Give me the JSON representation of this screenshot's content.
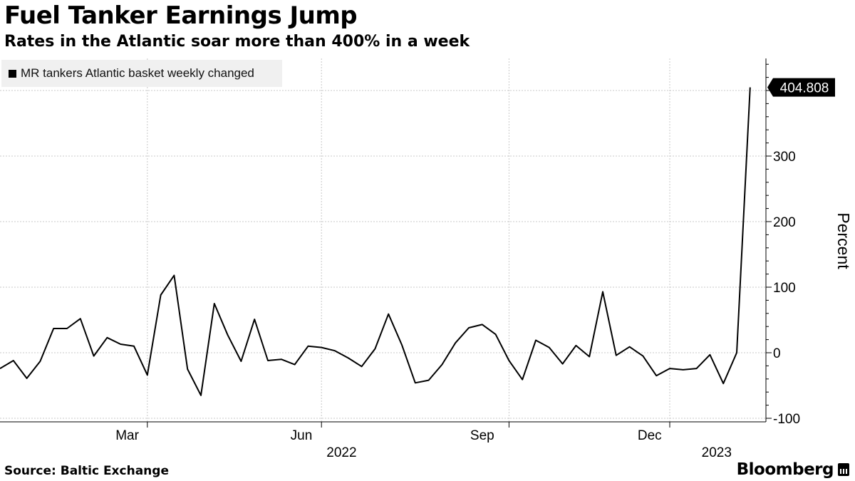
{
  "chart_data": {
    "type": "line",
    "title": "Fuel Tanker Earnings Jump",
    "subtitle": "Rates in the Atlantic soar more than 400% in a week",
    "ylabel": "Percent",
    "ylim": [
      -105,
      450
    ],
    "yticks": [
      -100,
      0,
      100,
      200,
      300
    ],
    "ytick_labels": [
      "-100",
      "0",
      "100",
      "200",
      "300"
    ],
    "grid": true,
    "legend_position": "top-left",
    "x_month_labels": [
      {
        "label": "Mar",
        "week": 9.5
      },
      {
        "label": "Jun",
        "week": 22.5
      },
      {
        "label": "Sep",
        "week": 36.0
      },
      {
        "label": "Dec",
        "week": 48.5
      }
    ],
    "x_gridlines_weeks": [
      11,
      24,
      38,
      50
    ],
    "x_year_labels": [
      {
        "label": "2022",
        "week": 25.5
      },
      {
        "label": "2023",
        "week": 53.5
      }
    ],
    "series": [
      {
        "name": "MR tankers Atlantic basket weekly changed",
        "color": "#000000",
        "x": [
          0,
          1,
          2,
          3,
          4,
          5,
          6,
          7,
          8,
          9,
          10,
          11,
          12,
          13,
          14,
          15,
          16,
          17,
          18,
          19,
          20,
          21,
          22,
          23,
          24,
          25,
          26,
          27,
          28,
          29,
          30,
          31,
          32,
          33,
          34,
          35,
          36,
          37,
          38,
          39,
          40,
          41,
          42,
          43,
          44,
          45,
          46,
          47,
          48,
          49,
          50,
          51,
          52,
          53,
          54,
          55,
          56
        ],
        "values": [
          -24,
          -12,
          -39,
          -13,
          37,
          37,
          52,
          -5,
          23,
          13,
          10,
          -34,
          88,
          118,
          -25,
          -65,
          75,
          27,
          -13,
          51,
          -12,
          -10,
          -18,
          10,
          8,
          3,
          -8,
          -21,
          6,
          59,
          12,
          -46,
          -42,
          -18,
          15,
          38,
          43,
          28,
          -12,
          -41,
          19,
          8,
          -17,
          11,
          -6,
          93,
          -4,
          9,
          -5,
          -35,
          -24,
          -26,
          -24,
          -3,
          -47,
          0,
          404.808
        ]
      }
    ],
    "last_value_label": "404.808"
  },
  "source": "Source:  Baltic Exchange",
  "brand": "Bloomberg"
}
